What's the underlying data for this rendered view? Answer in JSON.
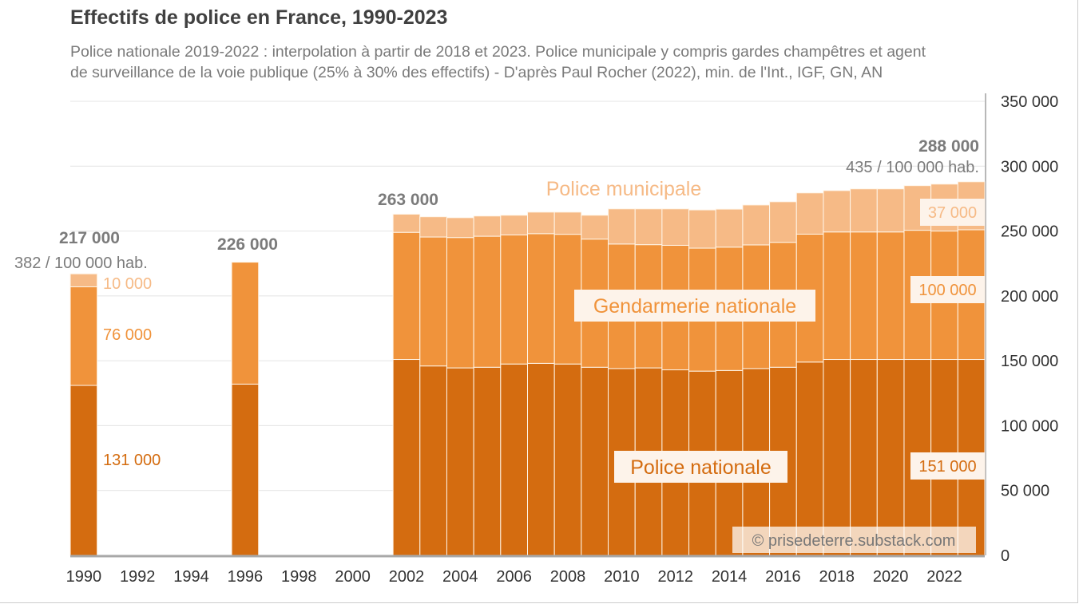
{
  "chart_data": {
    "type": "bar",
    "stacked": true,
    "title": "Effectifs de police en France, 1990-2023",
    "subtitle_lines": [
      "Police nationale 2019-2022 : interpolation à partir de 2018 et 2023. Police municipale y compris gardes champêtres et agent",
      "de surveillance de la voie publique  (25% à 30% des effectifs)  - D'après Paul Rocher (2022), min. de l'Int.,  IGF, GN, AN"
    ],
    "xlabel": "",
    "ylabel": "",
    "ylim": [
      0,
      350000
    ],
    "yticks": [
      0,
      50000,
      100000,
      150000,
      200000,
      250000,
      300000,
      350000
    ],
    "ytick_labels": [
      "0",
      "50 000",
      "100 000",
      "150 000",
      "200 000",
      "250 000",
      "300 000",
      "350 000"
    ],
    "y_axis_side": "right",
    "grid": true,
    "xticks": [
      1990,
      1992,
      1994,
      1996,
      1998,
      2000,
      2002,
      2004,
      2006,
      2008,
      2010,
      2012,
      2014,
      2016,
      2018,
      2020,
      2022
    ],
    "x": [
      1990,
      1996,
      2002,
      2003,
      2004,
      2005,
      2006,
      2007,
      2008,
      2009,
      2010,
      2011,
      2012,
      2013,
      2014,
      2015,
      2016,
      2017,
      2018,
      2019,
      2020,
      2021,
      2022,
      2023
    ],
    "series": [
      {
        "name": "Police nationale",
        "color": "#d46c10",
        "values": [
          131000,
          132000,
          151000,
          146000,
          144500,
          145000,
          147500,
          148000,
          147500,
          145000,
          144000,
          144500,
          143000,
          142000,
          142500,
          144000,
          145000,
          149000,
          151000,
          151000,
          151000,
          151000,
          151000,
          151000
        ]
      },
      {
        "name": "Gendarmerie nationale",
        "color": "#f0933b",
        "values": [
          76000,
          94000,
          98000,
          99400,
          100500,
          101000,
          99500,
          100000,
          100000,
          98800,
          96000,
          95000,
          96000,
          94800,
          95100,
          95300,
          96300,
          98600,
          98300,
          98300,
          98300,
          99600,
          99000,
          100000
        ]
      },
      {
        "name": "Police municipale",
        "color": "#f6ba86",
        "values": [
          10000,
          0,
          14000,
          15600,
          15300,
          15600,
          15200,
          16600,
          17100,
          18400,
          27100,
          27600,
          28100,
          29500,
          29300,
          30800,
          31300,
          31800,
          31900,
          33200,
          33200,
          34400,
          36200,
          37000
        ]
      }
    ],
    "annotations": {
      "total_1990": "217 000",
      "rate_1990": "382 / 100 000 hab.",
      "pm_1990": "10 000",
      "gn_1990": "76 000",
      "pn_1990": "131 000",
      "total_1996": "226 000",
      "total_2002": "263 000",
      "total_2023": "288 000",
      "rate_2023": "435 / 100 000 hab.",
      "pm_2023": "37 000",
      "gn_2023": "100 000",
      "pn_2023": "151 000",
      "label_pm": "Police municipale",
      "label_gn": "Gendarmerie nationale",
      "label_pn": "Police nationale"
    },
    "legend": "inline labels"
  },
  "credit": "© prisedeterre.substack.com"
}
